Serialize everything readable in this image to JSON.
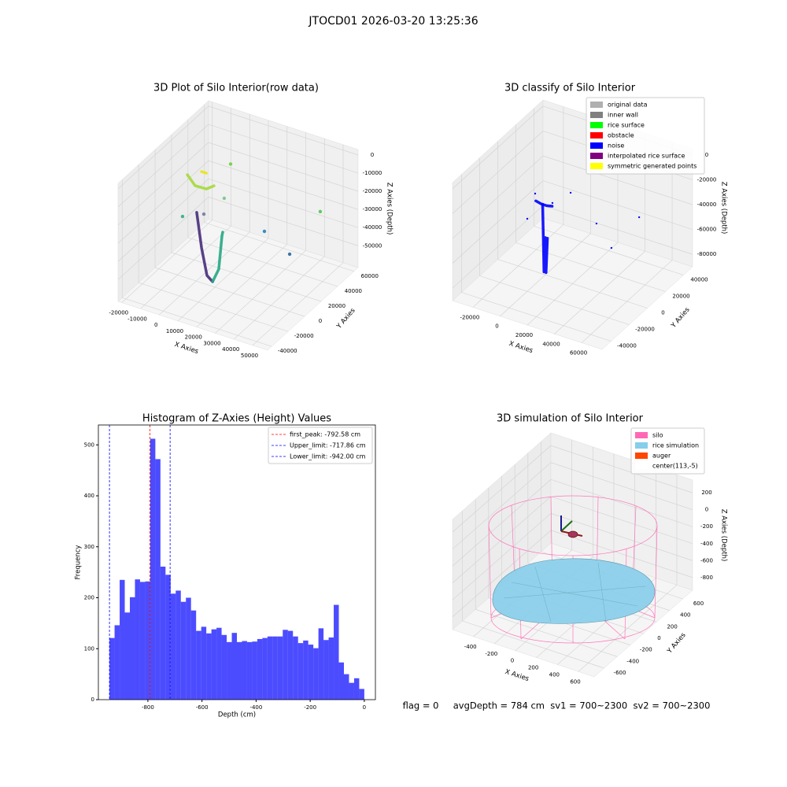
{
  "title": "JTOCD01 2026-03-20 13:25:36",
  "chart_data": [
    {
      "type": "scatter3d",
      "title": "3D Plot of Silo Interior(row data)",
      "xlabel": "X Axies",
      "ylabel": "Y Axies",
      "zlabel": "Z Axies (Depth)",
      "xlim": [
        -22000,
        58000
      ],
      "ylim": [
        -45000,
        65000
      ],
      "zlim": [
        -62000,
        3000
      ],
      "xticks": [
        -20000,
        -10000,
        0,
        10000,
        20000,
        30000,
        40000,
        50000
      ],
      "yticks": [
        -40000,
        -20000,
        0,
        20000,
        40000,
        60000
      ],
      "zticks": [
        0,
        -10000,
        -20000,
        -30000,
        -40000,
        -50000
      ],
      "series": [
        {
          "mode": "line",
          "color": "#472c7a",
          "x": [
            10400,
            13000,
            15900,
            18900
          ],
          "y": [
            -23000,
            -23000,
            -23000,
            -23000
          ],
          "z": [
            -11200,
            -29900,
            -44100,
            -46500
          ]
        },
        {
          "mode": "line",
          "color": "#26a784",
          "x": [
            18900,
            22200,
            23900,
            24300
          ],
          "y": [
            -23000,
            -23000,
            -23000,
            -23000
          ],
          "z": [
            -46500,
            -38500,
            -19700,
            -17400
          ]
        },
        {
          "mode": "line",
          "color": "#a5d93a",
          "x": [
            -9100,
            -5000,
            1000,
            5100
          ],
          "y": [
            10000,
            10000,
            10000,
            10000
          ],
          "z": [
            -10700,
            -15300,
            -15100,
            -12000
          ]
        },
        {
          "mode": "line",
          "color": "#e8e419",
          "x": [
            -1600,
            1000
          ],
          "y": [
            10000,
            10000
          ],
          "z": [
            -6400,
            -6400
          ]
        },
        {
          "mode": "points",
          "colors": [
            "#7ad151",
            "#3fb58f",
            "#86c98f",
            "#5ec962",
            "#3b8bc2",
            "#3e74a8",
            "#7b86a8"
          ],
          "x": [
            14000,
            -11700,
            10600,
            42600,
            32100,
            45600,
            -300
          ],
          "y": [
            10000,
            10000,
            10000,
            54000,
            10000,
            10000,
            10000
          ],
          "z": [
            3000,
            -34500,
            -17000,
            -31800,
            -28000,
            -36000,
            -29400
          ]
        }
      ]
    },
    {
      "type": "scatter3d",
      "title": "3D classify of Silo Interior",
      "xlabel": "X Axies",
      "ylabel": "Y Axies",
      "zlabel": "Z Axies (Depth)",
      "xlim": [
        -35000,
        75000
      ],
      "ylim": [
        -50000,
        50000
      ],
      "zlim": [
        -90000,
        5000
      ],
      "xticks": [
        -20000,
        0,
        20000,
        40000,
        60000
      ],
      "yticks": [
        -40000,
        -20000,
        0,
        20000,
        40000
      ],
      "zticks": [
        -80000,
        -60000,
        -40000,
        -20000,
        0
      ],
      "legend": [
        {
          "name": "original data",
          "color": "#b0b0b0"
        },
        {
          "name": "inner wall",
          "color": "#808080"
        },
        {
          "name": "rice surface",
          "color": "#00ff00"
        },
        {
          "name": "obstacle",
          "color": "#ff0000"
        },
        {
          "name": "noise",
          "color": "#0000ff"
        },
        {
          "name": "interpolated rice surface",
          "color": "#800080"
        },
        {
          "name": "symmetric generated points",
          "color": "#ffff00"
        }
      ],
      "series": [
        {
          "mode": "line",
          "color": "#0000ff",
          "x": [
            -2000,
            -1500,
            -1000,
            0,
            500,
            1500
          ],
          "y": [
            0,
            0,
            0,
            0,
            0,
            0
          ],
          "z": [
            -34000,
            -60000,
            -88000,
            -60000,
            -88000,
            -60000
          ]
        },
        {
          "mode": "line",
          "color": "#0000ff",
          "x": [
            -7000,
            -3000,
            1000,
            5000
          ],
          "y": [
            0,
            0,
            0,
            0
          ],
          "z": [
            -33000,
            -34000,
            -34000,
            -33000
          ]
        },
        {
          "mode": "points",
          "color": "#0000ff",
          "x": [
            -7500,
            5200,
            -13300,
            18600,
            37600,
            69000,
            48600
          ],
          "y": [
            0,
            0,
            0,
            0,
            0,
            0,
            0
          ],
          "z": [
            -27300,
            -30300,
            -49600,
            -17300,
            -35300,
            -19000,
            -51000
          ]
        }
      ]
    },
    {
      "type": "histogram",
      "title": "Histogram of Z-Axies (Height) Values",
      "xlabel": "Depth (cm)",
      "ylabel": "Frequency",
      "color": "#0000ff",
      "xlim": [
        -983,
        41
      ],
      "ylim": [
        0,
        539
      ],
      "xticks": [
        -800,
        -600,
        -400,
        -200,
        0
      ],
      "yticks": [
        0,
        100,
        200,
        300,
        400,
        500
      ],
      "bins": [
        -942,
        -923.16,
        -904.32,
        -885.48,
        -866.64,
        -847.8,
        -828.96,
        -810.12,
        -791.28,
        -772.44,
        -753.6,
        -734.76,
        -715.92,
        -697.08,
        -678.24,
        -659.4,
        -640.56,
        -621.72,
        -602.88,
        -584.04,
        -565.2,
        -546.36,
        -527.52,
        -508.68,
        -489.84,
        -471,
        -452.16,
        -433.32,
        -414.48,
        -395.64,
        -376.8,
        -357.96,
        -339.12,
        -320.28,
        -301.44,
        -282.6,
        -263.76,
        -244.92,
        -226.08,
        -207.24,
        -188.4,
        -169.56,
        -150.72,
        -131.88,
        -113.04,
        -94.2,
        -75.36,
        -56.52,
        -37.68,
        -18.84,
        0
      ],
      "counts": [
        121,
        146,
        235,
        171,
        201,
        236,
        231,
        232,
        512,
        472,
        261,
        245,
        208,
        214,
        192,
        200,
        175,
        135,
        143,
        130,
        138,
        141,
        127,
        113,
        131,
        113,
        115,
        113,
        114,
        119,
        121,
        124,
        124,
        124,
        137,
        135,
        124,
        111,
        116,
        108,
        101,
        140,
        117,
        122,
        186,
        73,
        50,
        33,
        42,
        21
      ],
      "lines": [
        {
          "name": "first_peak: -792.58 cm",
          "value": -792.58,
          "color": "#ff0000"
        },
        {
          "name": "Upper_limit: -717.86 cm",
          "value": -717.86,
          "color": "#0000ff"
        },
        {
          "name": "Lower_limit: -942.00 cm",
          "value": -942,
          "color": "#0000ff"
        }
      ]
    },
    {
      "type": "surface3d",
      "title": "3D simulation of Silo Interior",
      "xlabel": "X Axies",
      "ylabel": "Y Axies",
      "zlabel": "Z Axies (Depth)",
      "xlim": [
        -600,
        750
      ],
      "ylim": [
        -750,
        750
      ],
      "zlim": [
        -950,
        350
      ],
      "xticks": [
        -400,
        -200,
        0,
        200,
        400,
        600
      ],
      "yticks": [
        -600,
        -400,
        -200,
        0,
        200,
        400,
        600
      ],
      "zticks": [
        -800,
        -600,
        -400,
        -200,
        0,
        200
      ],
      "legend": [
        {
          "name": "silo",
          "color": "#ff69b4"
        },
        {
          "name": "rice simulation",
          "color": "#87ceeb"
        },
        {
          "name": "auger",
          "color": "#ff4500"
        },
        {
          "name": "center(113,-5)",
          "color": "#ffffff"
        }
      ]
    }
  ],
  "footer": "flag = 0     avgDepth = 784 cm  sv1 = 700~2300  sv2 = 700~2300"
}
